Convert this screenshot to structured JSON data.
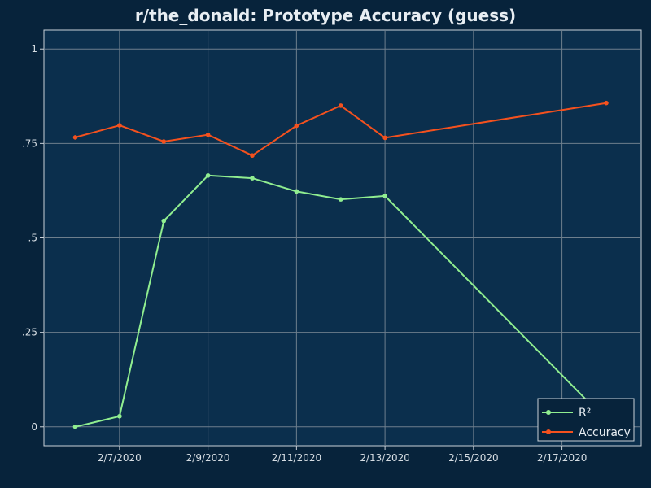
{
  "chart_data": {
    "type": "line",
    "title": "r/the_donald: Prototype Accuracy (guess)",
    "xlabel": "",
    "ylabel": "",
    "x_type": "date",
    "x_ticks": [
      "2020-02-07",
      "2020-02-09",
      "2020-02-11",
      "2020-02-13",
      "2020-02-15",
      "2020-02-17"
    ],
    "x_tick_labels": [
      "2/7/2020",
      "2/9/2020",
      "2/11/2020",
      "2/13/2020",
      "2/15/2020",
      "2/17/2020"
    ],
    "xlim": [
      "2020-02-05T07:00",
      "2020-02-18T19:00"
    ],
    "y_ticks": [
      0,
      0.25,
      0.5,
      0.75,
      1
    ],
    "y_tick_labels": [
      "0",
      ".25",
      ".5",
      ".75",
      "1"
    ],
    "ylim": [
      -0.05,
      1.05
    ],
    "grid": true,
    "legend_position": "bottom-right",
    "series": [
      {
        "name": "R²",
        "color": "#90ee90",
        "x": [
          "2020-02-06",
          "2020-02-07",
          "2020-02-08",
          "2020-02-09",
          "2020-02-10",
          "2020-02-11",
          "2020-02-12",
          "2020-02-13",
          "2020-02-18"
        ],
        "values": [
          0.0,
          0.028,
          0.545,
          0.665,
          0.658,
          0.623,
          0.602,
          0.611,
          0.018
        ]
      },
      {
        "name": "Accuracy",
        "color": "#f4511e",
        "x": [
          "2020-02-06",
          "2020-02-07",
          "2020-02-08",
          "2020-02-09",
          "2020-02-10",
          "2020-02-11",
          "2020-02-12",
          "2020-02-13",
          "2020-02-18"
        ],
        "values": [
          0.766,
          0.798,
          0.755,
          0.773,
          0.718,
          0.797,
          0.85,
          0.765,
          0.857
        ]
      }
    ]
  },
  "colors": {
    "page_background": "#07233b",
    "plot_background": "#0b2f4d",
    "grid": "#6e7f8d",
    "axis": "#c9d1d8",
    "text": "#e8eef3"
  }
}
